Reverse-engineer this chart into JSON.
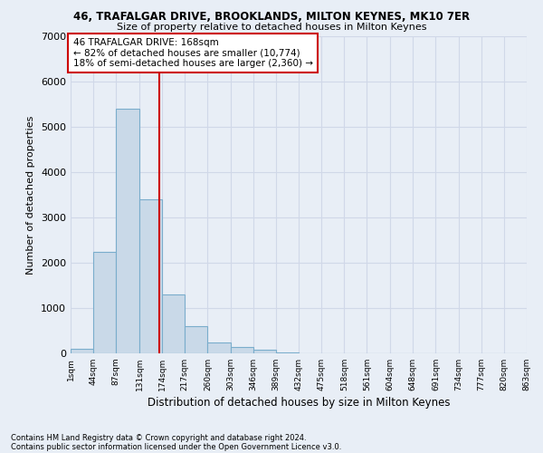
{
  "title": "46, TRAFALGAR DRIVE, BROOKLANDS, MILTON KEYNES, MK10 7ER",
  "subtitle": "Size of property relative to detached houses in Milton Keynes",
  "xlabel": "Distribution of detached houses by size in Milton Keynes",
  "ylabel": "Number of detached properties",
  "footnote1": "Contains HM Land Registry data © Crown copyright and database right 2024.",
  "footnote2": "Contains public sector information licensed under the Open Government Licence v3.0.",
  "annotation_title": "46 TRAFALGAR DRIVE: 168sqm",
  "annotation_line1": "← 82% of detached houses are smaller (10,774)",
  "annotation_line2": "18% of semi-detached houses are larger (2,360) →",
  "bar_color": "#c9d9e8",
  "bar_edge_color": "#7aadcc",
  "vline_color": "#cc0000",
  "vline_x": 168,
  "annotation_box_color": "#ffffff",
  "annotation_box_edge": "#cc0000",
  "background_color": "#e8eef6",
  "grid_color": "#d0d8e8",
  "bin_edges": [
    1,
    44,
    87,
    131,
    174,
    217,
    260,
    303,
    346,
    389,
    432,
    475,
    518,
    561,
    604,
    648,
    691,
    734,
    777,
    820,
    863
  ],
  "bin_counts": [
    100,
    2250,
    5400,
    3400,
    1300,
    600,
    250,
    150,
    80,
    30,
    0,
    0,
    0,
    0,
    0,
    0,
    0,
    0,
    0,
    0
  ],
  "ylim": [
    0,
    7000
  ],
  "yticks": [
    0,
    1000,
    2000,
    3000,
    4000,
    5000,
    6000,
    7000
  ]
}
